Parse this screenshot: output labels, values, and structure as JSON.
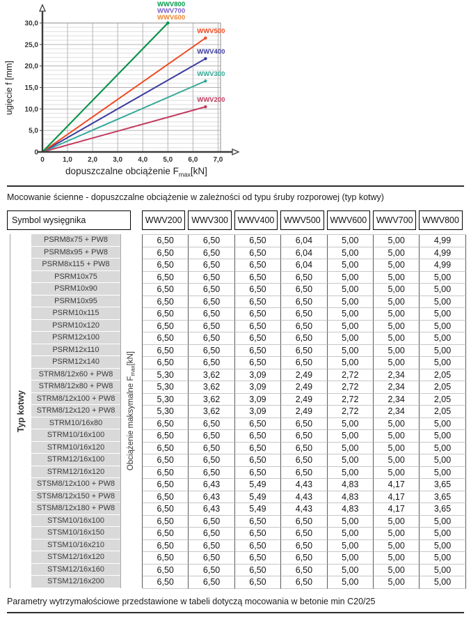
{
  "chart": {
    "y_axis_label": "ugięcie f [mm]",
    "x_label_prefix": "dopuszczalne obciążenie F",
    "x_label_sub": "max",
    "x_label_suffix": "[kN]",
    "x_ticks": [
      "0",
      "1,0",
      "2,0",
      "3,0",
      "4,0",
      "5,0",
      "6,0",
      "7,0"
    ],
    "y_ticks": [
      "0",
      "5,0",
      "10,0",
      "15,0",
      "20,0",
      "25,0",
      "30,0"
    ]
  },
  "chart_data": {
    "type": "line",
    "title": "",
    "xlabel": "dopuszczalne obciążenie Fmax [kN]",
    "ylabel": "ugięcie f [mm]",
    "xlim": [
      0,
      7.1
    ],
    "ylim": [
      0,
      30
    ],
    "x_tick_step": 1.0,
    "y_major_step": 5.0,
    "y_minor_step": 1.0,
    "grid": true,
    "legend_position": "labels-at-line-ends",
    "series": [
      {
        "name": "WWV200",
        "color": "#C23A5F",
        "points": [
          [
            0,
            0
          ],
          [
            6.5,
            10.5
          ]
        ],
        "label_mode": "above-end"
      },
      {
        "name": "WWV300",
        "color": "#35A998",
        "points": [
          [
            0,
            0
          ],
          [
            6.5,
            16.5
          ]
        ],
        "label_mode": "above-end"
      },
      {
        "name": "WWV400",
        "color": "#3A3A9E",
        "points": [
          [
            0,
            0
          ],
          [
            6.5,
            21.7
          ]
        ],
        "label_mode": "above-end"
      },
      {
        "name": "WWV500",
        "color": "#EF4B23",
        "points": [
          [
            0,
            0
          ],
          [
            6.5,
            26.5
          ]
        ],
        "label_mode": "above-end"
      },
      {
        "name": "WWV600",
        "color": "#EF8532",
        "points": [
          [
            0,
            0
          ],
          [
            5.0,
            30.0
          ]
        ],
        "label_mode": "top-stack"
      },
      {
        "name": "WWV700",
        "color": "#7A5FC9",
        "points": [
          [
            0,
            0
          ],
          [
            5.0,
            30.0
          ]
        ],
        "label_mode": "top-stack"
      },
      {
        "name": "WWV800",
        "color": "#009B48",
        "points": [
          [
            0,
            0
          ],
          [
            5.0,
            30.0
          ]
        ],
        "label_mode": "top-stack"
      }
    ]
  },
  "table": {
    "caption": "Mocowanie ścienne - dopuszczalne obciążenie w zależności od typu śruby rozporowej (typ kotwy)",
    "corner_header": "Symbol wysięgnika",
    "columns": [
      "WWV200",
      "WWV300",
      "WWV400",
      "WWV500",
      "WWV600",
      "WWV700",
      "WWV800"
    ],
    "left_axis_label": "Typ kotwy",
    "value_axis_prefix": "Obciążenie maksymalne F",
    "value_axis_sub": "max",
    "value_axis_suffix": "[kN]",
    "rows": [
      {
        "name": "PSRM8x75 + PW8",
        "values": [
          "6,50",
          "6,50",
          "6,50",
          "6,04",
          "5,00",
          "5,00",
          "4,99"
        ]
      },
      {
        "name": "PSRM8x95 + PW8",
        "values": [
          "6,50",
          "6,50",
          "6,50",
          "6,04",
          "5,00",
          "5,00",
          "4,99"
        ]
      },
      {
        "name": "PSRM8x115 + PW8",
        "values": [
          "6,50",
          "6,50",
          "6,50",
          "6,04",
          "5,00",
          "5,00",
          "4,99"
        ]
      },
      {
        "name": "PSRM10x75",
        "values": [
          "6,50",
          "6,50",
          "6,50",
          "6,50",
          "5,00",
          "5,00",
          "5,00"
        ]
      },
      {
        "name": "PSRM10x90",
        "values": [
          "6,50",
          "6,50",
          "6,50",
          "6,50",
          "5,00",
          "5,00",
          "5,00"
        ]
      },
      {
        "name": "PSRM10x95",
        "values": [
          "6,50",
          "6,50",
          "6,50",
          "6,50",
          "5,00",
          "5,00",
          "5,00"
        ]
      },
      {
        "name": "PSRM10x115",
        "values": [
          "6,50",
          "6,50",
          "6,50",
          "6,50",
          "5,00",
          "5,00",
          "5,00"
        ]
      },
      {
        "name": "PSRM10x120",
        "values": [
          "6,50",
          "6,50",
          "6,50",
          "6,50",
          "5,00",
          "5,00",
          "5,00"
        ]
      },
      {
        "name": "PSRM12x100",
        "values": [
          "6,50",
          "6,50",
          "6,50",
          "6,50",
          "5,00",
          "5,00",
          "5,00"
        ]
      },
      {
        "name": "PSRM12x110",
        "values": [
          "6,50",
          "6,50",
          "6,50",
          "6,50",
          "5,00",
          "5,00",
          "5,00"
        ]
      },
      {
        "name": "PSRM12x140",
        "values": [
          "6,50",
          "6,50",
          "6,50",
          "6,50",
          "5,00",
          "5,00",
          "5,00"
        ]
      },
      {
        "name": "STRM8/12x60 + PW8",
        "values": [
          "5,30",
          "3,62",
          "3,09",
          "2,49",
          "2,72",
          "2,34",
          "2,05"
        ]
      },
      {
        "name": "STRM8/12x80 + PW8",
        "values": [
          "5,30",
          "3,62",
          "3,09",
          "2,49",
          "2,72",
          "2,34",
          "2,05"
        ]
      },
      {
        "name": "STRM8/12x100 + PW8",
        "values": [
          "5,30",
          "3,62",
          "3,09",
          "2,49",
          "2,72",
          "2,34",
          "2,05"
        ]
      },
      {
        "name": "STRM8/12x120 + PW8",
        "values": [
          "5,30",
          "3,62",
          "3,09",
          "2,49",
          "2,72",
          "2,34",
          "2,05"
        ]
      },
      {
        "name": "STRM10/16x80",
        "values": [
          "6,50",
          "6,50",
          "6,50",
          "6,50",
          "5,00",
          "5,00",
          "5,00"
        ]
      },
      {
        "name": "STRM10/16x100",
        "values": [
          "6,50",
          "6,50",
          "6,50",
          "6,50",
          "5,00",
          "5,00",
          "5,00"
        ]
      },
      {
        "name": "STRM10/16x120",
        "values": [
          "6,50",
          "6,50",
          "6,50",
          "6,50",
          "5,00",
          "5,00",
          "5,00"
        ]
      },
      {
        "name": "STRM12/16x100",
        "values": [
          "6,50",
          "6,50",
          "6,50",
          "6,50",
          "5,00",
          "5,00",
          "5,00"
        ]
      },
      {
        "name": "STRM12/16x120",
        "values": [
          "6,50",
          "6,50",
          "6,50",
          "6,50",
          "5,00",
          "5,00",
          "5,00"
        ]
      },
      {
        "name": "STSM8/12x100 + PW8",
        "values": [
          "6,50",
          "6,43",
          "5,49",
          "4,43",
          "4,83",
          "4,17",
          "3,65"
        ]
      },
      {
        "name": "STSM8/12x150 + PW8",
        "values": [
          "6,50",
          "6,43",
          "5,49",
          "4,43",
          "4,83",
          "4,17",
          "3,65"
        ]
      },
      {
        "name": "STSM8/12x180 + PW8",
        "values": [
          "6,50",
          "6,43",
          "5,49",
          "4,43",
          "4,83",
          "4,17",
          "3,65"
        ]
      },
      {
        "name": "STSM10/16x100",
        "values": [
          "6,50",
          "6,50",
          "6,50",
          "6,50",
          "5,00",
          "5,00",
          "5,00"
        ]
      },
      {
        "name": "STSM10/16x150",
        "values": [
          "6,50",
          "6,50",
          "6,50",
          "6,50",
          "5,00",
          "5,00",
          "5,00"
        ]
      },
      {
        "name": "STSM10/16x210",
        "values": [
          "6,50",
          "6,50",
          "6,50",
          "6,50",
          "5,00",
          "5,00",
          "5,00"
        ]
      },
      {
        "name": "STSM12/16x120",
        "values": [
          "6,50",
          "6,50",
          "6,50",
          "6,50",
          "5,00",
          "5,00",
          "5,00"
        ]
      },
      {
        "name": "STSM12/16x160",
        "values": [
          "6,50",
          "6,50",
          "6,50",
          "6,50",
          "5,00",
          "5,00",
          "5,00"
        ]
      },
      {
        "name": "STSM12/16x200",
        "values": [
          "6,50",
          "6,50",
          "6,50",
          "6,50",
          "5,00",
          "5,00",
          "5,00"
        ]
      }
    ]
  },
  "footer": {
    "note": "Parametry wytrzymałościowe przedstawione w tabeli dotyczą mocowania w betonie min C20/25"
  }
}
